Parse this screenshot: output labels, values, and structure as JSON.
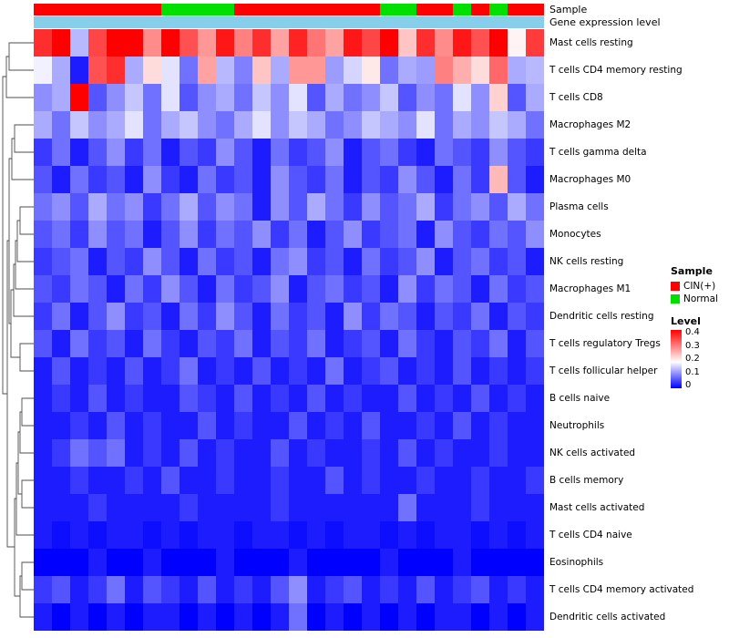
{
  "annotations": {
    "sample_label": "Sample",
    "expression_label": "Gene expression level",
    "expression_color": "#87CEEB"
  },
  "legend": {
    "sample_title": "Sample",
    "sample_items": [
      {
        "label": "CIN(+)",
        "color": "#FF0000"
      },
      {
        "label": "Normal",
        "color": "#00E000"
      }
    ],
    "level_title": "Level",
    "level_ticks": [
      "0.4",
      "0.3",
      "0.2",
      "0.1",
      "0"
    ]
  },
  "chart_data": {
    "type": "heatmap",
    "title": "",
    "rows": [
      "Mast cells resting",
      "T cells CD4 memory resting",
      "T cells CD8",
      "Macrophages M2",
      "T cells gamma delta",
      "Macrophages M0",
      "Plasma cells",
      "Monocytes",
      "NK cells resting",
      "Macrophages M1",
      "Dendritic cells resting",
      "T cells regulatory  Tregs",
      "T cells follicular helper",
      "B cells naive",
      "Neutrophils",
      "NK cells activated",
      "B cells memory",
      "Mast cells activated",
      "T cells CD4 naive",
      "Eosinophils",
      "T cells CD4 memory activated",
      "Dendritic cells activated"
    ],
    "columns_count": 28,
    "column_annotation": [
      "CIN(+)",
      "CIN(+)",
      "CIN(+)",
      "CIN(+)",
      "CIN(+)",
      "CIN(+)",
      "CIN(+)",
      "Normal",
      "Normal",
      "Normal",
      "Normal",
      "CIN(+)",
      "CIN(+)",
      "CIN(+)",
      "CIN(+)",
      "CIN(+)",
      "CIN(+)",
      "CIN(+)",
      "CIN(+)",
      "Normal",
      "Normal",
      "CIN(+)",
      "CIN(+)",
      "Normal",
      "CIN(+)",
      "Normal",
      "CIN(+)",
      "CIN(+)"
    ],
    "annotation_colors": {
      "CIN(+)": "#FF0000",
      "Normal": "#00E000"
    },
    "colormap": {
      "low": "#0000FF",
      "mid": "#FFFFFF",
      "high": "#FF0000",
      "domain": [
        0,
        0.18,
        0.4
      ]
    },
    "value_label": "Level",
    "value_range": [
      0,
      0.4
    ],
    "values": [
      [
        0.36,
        0.4,
        0.13,
        0.34,
        0.4,
        0.4,
        0.28,
        0.4,
        0.33,
        0.27,
        0.38,
        0.29,
        0.36,
        0.26,
        0.37,
        0.3,
        0.26,
        0.38,
        0.34,
        0.4,
        0.23,
        0.36,
        0.28,
        0.38,
        0.33,
        0.4,
        0.19,
        0.35
      ],
      [
        0.17,
        0.12,
        0.02,
        0.33,
        0.36,
        0.12,
        0.21,
        0.16,
        0.08,
        0.26,
        0.13,
        0.09,
        0.23,
        0.12,
        0.27,
        0.27,
        0.11,
        0.15,
        0.2,
        0.08,
        0.12,
        0.11,
        0.29,
        0.25,
        0.21,
        0.31,
        0.12,
        0.13
      ],
      [
        0.1,
        0.12,
        0.4,
        0.06,
        0.1,
        0.14,
        0.08,
        0.16,
        0.06,
        0.1,
        0.12,
        0.08,
        0.14,
        0.1,
        0.16,
        0.06,
        0.12,
        0.08,
        0.1,
        0.14,
        0.06,
        0.1,
        0.08,
        0.16,
        0.1,
        0.22,
        0.06,
        0.12
      ],
      [
        0.12,
        0.08,
        0.14,
        0.1,
        0.12,
        0.16,
        0.08,
        0.12,
        0.14,
        0.1,
        0.08,
        0.12,
        0.16,
        0.1,
        0.14,
        0.12,
        0.08,
        0.1,
        0.14,
        0.12,
        0.1,
        0.16,
        0.08,
        0.12,
        0.1,
        0.14,
        0.12,
        0.08
      ],
      [
        0.04,
        0.08,
        0.02,
        0.06,
        0.1,
        0.04,
        0.08,
        0.02,
        0.06,
        0.04,
        0.1,
        0.06,
        0.02,
        0.08,
        0.04,
        0.06,
        0.1,
        0.02,
        0.06,
        0.08,
        0.04,
        0.02,
        0.08,
        0.06,
        0.04,
        0.1,
        0.06,
        0.04
      ],
      [
        0.06,
        0.02,
        0.08,
        0.04,
        0.06,
        0.02,
        0.1,
        0.04,
        0.02,
        0.08,
        0.04,
        0.06,
        0.02,
        0.1,
        0.06,
        0.04,
        0.08,
        0.02,
        0.06,
        0.04,
        0.1,
        0.06,
        0.02,
        0.08,
        0.04,
        0.24,
        0.06,
        0.02
      ],
      [
        0.08,
        0.1,
        0.06,
        0.12,
        0.08,
        0.1,
        0.04,
        0.08,
        0.12,
        0.06,
        0.1,
        0.08,
        0.02,
        0.1,
        0.06,
        0.12,
        0.08,
        0.04,
        0.1,
        0.06,
        0.08,
        0.12,
        0.04,
        0.08,
        0.1,
        0.06,
        0.12,
        0.08
      ],
      [
        0.06,
        0.08,
        0.04,
        0.1,
        0.06,
        0.08,
        0.02,
        0.06,
        0.1,
        0.04,
        0.08,
        0.06,
        0.1,
        0.04,
        0.08,
        0.02,
        0.06,
        0.1,
        0.04,
        0.06,
        0.08,
        0.02,
        0.1,
        0.06,
        0.04,
        0.08,
        0.06,
        0.1
      ],
      [
        0.04,
        0.06,
        0.08,
        0.02,
        0.06,
        0.04,
        0.1,
        0.06,
        0.02,
        0.08,
        0.04,
        0.06,
        0.02,
        0.08,
        0.1,
        0.04,
        0.06,
        0.02,
        0.08,
        0.04,
        0.06,
        0.1,
        0.02,
        0.06,
        0.08,
        0.04,
        0.06,
        0.02
      ],
      [
        0.06,
        0.04,
        0.08,
        0.06,
        0.02,
        0.08,
        0.04,
        0.1,
        0.06,
        0.02,
        0.08,
        0.04,
        0.06,
        0.1,
        0.02,
        0.06,
        0.08,
        0.04,
        0.06,
        0.02,
        0.1,
        0.04,
        0.08,
        0.06,
        0.02,
        0.08,
        0.04,
        0.06
      ],
      [
        0.04,
        0.08,
        0.02,
        0.06,
        0.1,
        0.04,
        0.06,
        0.02,
        0.08,
        0.04,
        0.1,
        0.06,
        0.02,
        0.08,
        0.04,
        0.06,
        0.02,
        0.1,
        0.04,
        0.08,
        0.06,
        0.02,
        0.06,
        0.04,
        0.08,
        0.02,
        0.06,
        0.04
      ],
      [
        0.06,
        0.02,
        0.08,
        0.04,
        0.06,
        0.02,
        0.08,
        0.04,
        0.02,
        0.06,
        0.04,
        0.08,
        0.02,
        0.06,
        0.04,
        0.08,
        0.02,
        0.04,
        0.06,
        0.02,
        0.08,
        0.04,
        0.02,
        0.06,
        0.04,
        0.08,
        0.02,
        0.06
      ],
      [
        0.02,
        0.06,
        0.02,
        0.04,
        0.02,
        0.06,
        0.02,
        0.04,
        0.08,
        0.02,
        0.04,
        0.02,
        0.06,
        0.02,
        0.04,
        0.02,
        0.08,
        0.02,
        0.04,
        0.06,
        0.02,
        0.04,
        0.02,
        0.06,
        0.02,
        0.04,
        0.02,
        0.04
      ],
      [
        0.02,
        0.04,
        0.02,
        0.06,
        0.02,
        0.04,
        0.02,
        0.02,
        0.06,
        0.04,
        0.02,
        0.06,
        0.02,
        0.04,
        0.02,
        0.06,
        0.02,
        0.04,
        0.02,
        0.02,
        0.06,
        0.02,
        0.04,
        0.02,
        0.06,
        0.02,
        0.04,
        0.02
      ],
      [
        0.02,
        0.02,
        0.04,
        0.02,
        0.06,
        0.02,
        0.04,
        0.02,
        0.02,
        0.06,
        0.02,
        0.04,
        0.02,
        0.02,
        0.06,
        0.02,
        0.04,
        0.02,
        0.06,
        0.02,
        0.02,
        0.04,
        0.02,
        0.06,
        0.02,
        0.04,
        0.02,
        0.02
      ],
      [
        0.02,
        0.04,
        0.08,
        0.06,
        0.08,
        0.02,
        0.04,
        0.02,
        0.06,
        0.02,
        0.04,
        0.02,
        0.02,
        0.06,
        0.02,
        0.04,
        0.02,
        0.02,
        0.04,
        0.02,
        0.06,
        0.02,
        0.04,
        0.02,
        0.02,
        0.04,
        0.02,
        0.02
      ],
      [
        0.02,
        0.02,
        0.04,
        0.02,
        0.02,
        0.04,
        0.02,
        0.06,
        0.02,
        0.02,
        0.04,
        0.02,
        0.02,
        0.04,
        0.02,
        0.02,
        0.06,
        0.02,
        0.04,
        0.02,
        0.02,
        0.04,
        0.02,
        0.02,
        0.04,
        0.02,
        0.02,
        0.04
      ],
      [
        0.02,
        0.02,
        0.02,
        0.04,
        0.02,
        0.02,
        0.02,
        0.02,
        0.04,
        0.02,
        0.02,
        0.02,
        0.02,
        0.04,
        0.02,
        0.02,
        0.02,
        0.02,
        0.02,
        0.02,
        0.08,
        0.02,
        0.02,
        0.02,
        0.04,
        0.02,
        0.02,
        0.02
      ],
      [
        0.02,
        0.01,
        0.02,
        0.01,
        0.02,
        0.02,
        0.01,
        0.02,
        0.01,
        0.02,
        0.02,
        0.01,
        0.02,
        0.02,
        0.01,
        0.02,
        0.01,
        0.02,
        0.02,
        0.01,
        0.02,
        0.01,
        0.02,
        0.02,
        0.01,
        0.02,
        0.01,
        0.02
      ],
      [
        0.0,
        0.0,
        0.0,
        0.02,
        0.0,
        0.0,
        0.02,
        0.0,
        0.0,
        0.0,
        0.02,
        0.0,
        0.0,
        0.0,
        0.02,
        0.0,
        0.0,
        0.0,
        0.0,
        0.02,
        0.0,
        0.0,
        0.0,
        0.02,
        0.0,
        0.0,
        0.0,
        0.0
      ],
      [
        0.04,
        0.06,
        0.02,
        0.04,
        0.08,
        0.02,
        0.06,
        0.04,
        0.02,
        0.06,
        0.02,
        0.04,
        0.02,
        0.06,
        0.1,
        0.02,
        0.04,
        0.06,
        0.02,
        0.04,
        0.02,
        0.06,
        0.02,
        0.04,
        0.06,
        0.02,
        0.04,
        0.02
      ],
      [
        0.02,
        0.0,
        0.02,
        0.0,
        0.02,
        0.0,
        0.02,
        0.02,
        0.0,
        0.02,
        0.0,
        0.02,
        0.0,
        0.02,
        0.08,
        0.0,
        0.02,
        0.0,
        0.02,
        0.0,
        0.02,
        0.0,
        0.02,
        0.02,
        0.0,
        0.02,
        0.0,
        0.02
      ]
    ]
  }
}
